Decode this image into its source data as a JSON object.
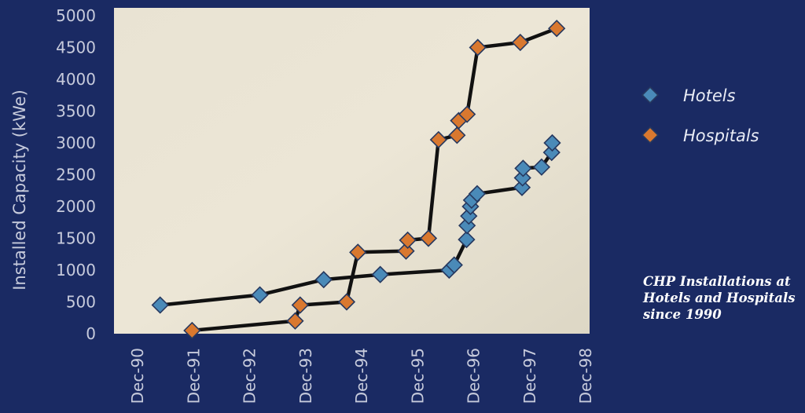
{
  "caption": {
    "line1": "CHP Installations at",
    "line2": "Hotels and Hospitals",
    "line3": "since 1990"
  },
  "colors": {
    "background": "#1a2a63",
    "plot_area": "#e6e0cf",
    "hotels_marker": "#4a8ab8",
    "hospitals_marker": "#d9782f",
    "line": "#111111"
  },
  "chart_data": {
    "type": "line",
    "title": "",
    "xlabel": "",
    "ylabel": "Installed Capacity (kWe)",
    "ylim": [
      0,
      5000
    ],
    "yticks": [
      0,
      500,
      1000,
      1500,
      2000,
      2500,
      3000,
      3500,
      4000,
      4500,
      5000
    ],
    "xlim": [
      1990.917,
      1998.917
    ],
    "xticks": [
      {
        "value": 1990.917,
        "label": "Dec-90"
      },
      {
        "value": 1991.917,
        "label": "Dec-91"
      },
      {
        "value": 1992.917,
        "label": "Dec-92"
      },
      {
        "value": 1993.917,
        "label": "Dec-93"
      },
      {
        "value": 1994.917,
        "label": "Dec-94"
      },
      {
        "value": 1995.917,
        "label": "Dec-95"
      },
      {
        "value": 1996.917,
        "label": "Dec-96"
      },
      {
        "value": 1997.917,
        "label": "Dec-97"
      },
      {
        "value": 1998.917,
        "label": "Dec-98"
      }
    ],
    "grid": false,
    "legend": "right",
    "series": [
      {
        "name": "Hotels",
        "marker": "diamond",
        "points": [
          [
            1991.32,
            450
          ],
          [
            1993.1,
            610
          ],
          [
            1994.24,
            850
          ],
          [
            1995.25,
            930
          ],
          [
            1996.48,
            1000
          ],
          [
            1996.57,
            1080
          ],
          [
            1996.79,
            1480
          ],
          [
            1996.8,
            1700
          ],
          [
            1996.83,
            1850
          ],
          [
            1996.86,
            2000
          ],
          [
            1996.88,
            2100
          ],
          [
            1996.98,
            2200
          ],
          [
            1997.78,
            2300
          ],
          [
            1997.79,
            2450
          ],
          [
            1997.8,
            2600
          ],
          [
            1998.13,
            2620
          ],
          [
            1998.31,
            2850
          ],
          [
            1998.32,
            3000
          ]
        ]
      },
      {
        "name": "Hospitals",
        "marker": "diamond",
        "points": [
          [
            1991.89,
            50
          ],
          [
            1993.73,
            200
          ],
          [
            1993.82,
            450
          ],
          [
            1994.65,
            500
          ],
          [
            1994.85,
            1280
          ],
          [
            1995.71,
            1300
          ],
          [
            1995.74,
            1470
          ],
          [
            1996.11,
            1500
          ],
          [
            1996.29,
            3050
          ],
          [
            1996.62,
            3120
          ],
          [
            1996.65,
            3350
          ],
          [
            1996.8,
            3450
          ],
          [
            1996.99,
            4500
          ],
          [
            1997.75,
            4580
          ],
          [
            1998.4,
            4800
          ]
        ]
      }
    ]
  }
}
